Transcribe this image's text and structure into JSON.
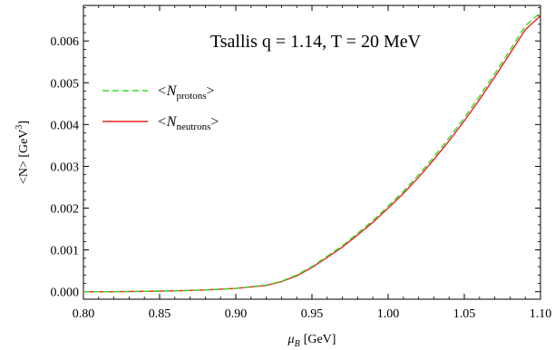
{
  "chart_data": {
    "type": "line",
    "annotation": "Tsallis q = 1.14,     T = 20 MeV",
    "xlabel": {
      "symbol": "μ",
      "sub": "B",
      "unit": "[GeV]"
    },
    "ylabel": {
      "text": "<N> [GeV",
      "sup": "3",
      "close": "]"
    },
    "xlim": [
      0.8,
      1.1
    ],
    "ylim": [
      -0.00018,
      0.00685
    ],
    "xticks": [
      "0.80",
      "0.85",
      "0.90",
      "0.95",
      "1.00",
      "1.05",
      "1.10"
    ],
    "yticks": [
      "0.000",
      "0.001",
      "0.002",
      "0.003",
      "0.004",
      "0.005",
      "0.006"
    ],
    "grid": false,
    "legend_position": "upper-left",
    "x": [
      0.8,
      0.82,
      0.84,
      0.86,
      0.88,
      0.9,
      0.92,
      0.93,
      0.94,
      0.95,
      0.96,
      0.97,
      0.98,
      0.99,
      1.0,
      1.01,
      1.02,
      1.03,
      1.04,
      1.05,
      1.06,
      1.07,
      1.08,
      1.09,
      1.1
    ],
    "series": [
      {
        "name_prefix": "<N",
        "name_sub": "protons",
        "name_suffix": ">",
        "color": "#33dd22",
        "dash": "7,4",
        "values": [
          0.0,
          0.0,
          1e-05,
          2e-05,
          4e-05,
          8e-05,
          0.00016,
          0.00025,
          0.0004,
          0.0006,
          0.00085,
          0.0011,
          0.0014,
          0.0017,
          0.00205,
          0.0024,
          0.0028,
          0.00322,
          0.00368,
          0.00416,
          0.00468,
          0.00522,
          0.00578,
          0.00636,
          0.00668
        ]
      },
      {
        "name_prefix": "<N",
        "name_sub": "neutrons",
        "name_suffix": ">",
        "color": "#ee2222",
        "dash": "",
        "values": [
          0.0,
          0.0,
          1e-05,
          2e-05,
          4e-05,
          8e-05,
          0.00015,
          0.00024,
          0.00038,
          0.00058,
          0.00082,
          0.00107,
          0.00136,
          0.00166,
          0.002,
          0.00235,
          0.00274,
          0.00316,
          0.00361,
          0.00409,
          0.0046,
          0.00514,
          0.0057,
          0.00627,
          0.0066
        ]
      }
    ]
  }
}
